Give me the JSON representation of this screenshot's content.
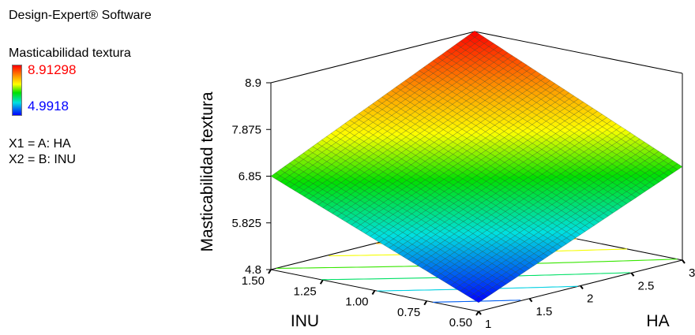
{
  "software_title": "Design-Expert® Software",
  "legend": {
    "title": "Masticabilidad textura",
    "high_label": "8.91298",
    "low_label": "4.9918",
    "high_color": "#ff0000",
    "low_color": "#0000ff"
  },
  "factors": {
    "x1": "X1 = A: HA",
    "x2": "X2 = B: INU"
  },
  "chart_data": {
    "type": "surface3d",
    "zlabel": "Masticabilidad textura",
    "xlabel": "HA",
    "ylabel": "INU",
    "xlim": [
      1,
      3
    ],
    "ylim": [
      0.5,
      1.5
    ],
    "zlim": [
      4.8,
      8.9
    ],
    "x_ticks": [
      "1",
      "1.5",
      "2",
      "2.5",
      "3"
    ],
    "y_ticks": [
      "0.50",
      "0.75",
      "1.00",
      "1.25",
      "1.50"
    ],
    "z_ticks": [
      "4.8",
      "5.825",
      "6.85",
      "7.875",
      "8.9"
    ],
    "legend_range": [
      4.9918,
      8.91298
    ],
    "surface_corners": [
      {
        "HA": 1,
        "INU": 0.5,
        "value": 4.9918
      },
      {
        "HA": 1,
        "INU": 1.5,
        "value": 6.85
      },
      {
        "HA": 3,
        "INU": 1.5,
        "value": 8.91298
      },
      {
        "HA": 3,
        "INU": 0.5,
        "value": 6.85
      }
    ]
  }
}
